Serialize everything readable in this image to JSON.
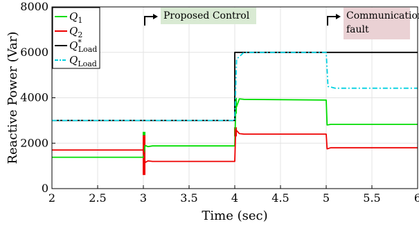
{
  "chart_data": {
    "type": "line",
    "title": "",
    "xlabel": "Time (sec)",
    "ylabel": "Reactive Power (Var)",
    "xlim": [
      2,
      6
    ],
    "ylim": [
      0,
      8000
    ],
    "xticks": [
      "2",
      "2.5",
      "3",
      "3.5",
      "4",
      "4.5",
      "5",
      "5.5",
      "6"
    ],
    "yticks": [
      "0",
      "2000",
      "4000",
      "6000",
      "8000"
    ],
    "grid": true,
    "legend_position": "top-left",
    "series": [
      {
        "name": "Q1",
        "legend_main": "Q",
        "legend_sub": "1",
        "legend_sup": "",
        "color": "#00dd00",
        "dash": "solid",
        "x": [
          2,
          3,
          3.02,
          3.05,
          3.1,
          4,
          4.01,
          4.05,
          4.1,
          5,
          5.01,
          5.05,
          6
        ],
        "y": [
          1380,
          1380,
          1900,
          1850,
          1880,
          1880,
          3500,
          3950,
          3930,
          3900,
          2800,
          2830,
          2830
        ]
      },
      {
        "name": "Q2",
        "legend_main": "Q",
        "legend_sub": "2",
        "legend_sup": "",
        "color": "#ee0000",
        "dash": "solid",
        "x": [
          2,
          3,
          3.02,
          3.05,
          3.1,
          4,
          4.01,
          4.05,
          4.1,
          5,
          5.01,
          5.05,
          6
        ],
        "y": [
          1700,
          1700,
          1150,
          1220,
          1200,
          1200,
          2600,
          2420,
          2400,
          2400,
          1750,
          1800,
          1800
        ]
      },
      {
        "name": "Q*Load",
        "legend_main": "Q",
        "legend_sub": "Load",
        "legend_sup": "*",
        "color": "#000000",
        "dash": "solid",
        "x": [
          2,
          4,
          4,
          6
        ],
        "y": [
          3000,
          3000,
          6000,
          6000
        ]
      },
      {
        "name": "QLoad",
        "legend_main": "Q",
        "legend_sub": "Load",
        "legend_sup": "",
        "color": "#00d0e0",
        "dash": "dashdot",
        "x": [
          2,
          4,
          4.02,
          4.1,
          5,
          5.02,
          5.1,
          6
        ],
        "y": [
          3000,
          3000,
          5700,
          6000,
          6000,
          4500,
          4420,
          4420
        ]
      }
    ],
    "oscillations": [
      {
        "series": "Q1",
        "x": 3.0,
        "ymin": 800,
        "ymax": 2500
      },
      {
        "series": "Q2",
        "x": 3.0,
        "ymin": 600,
        "ymax": 2350
      },
      {
        "series": "Q1",
        "x": 4.0,
        "ymin": 3300,
        "ymax": 4000
      },
      {
        "series": "Q2",
        "x": 4.0,
        "ymin": 2300,
        "ymax": 2700
      }
    ],
    "annotations": [
      {
        "text_lines": [
          "Proposed Control"
        ],
        "x": 3.0,
        "bg": "#d9ead3"
      },
      {
        "text_lines": [
          "Communication",
          "fault"
        ],
        "x": 5.0,
        "bg": "#ead1d4"
      }
    ]
  }
}
